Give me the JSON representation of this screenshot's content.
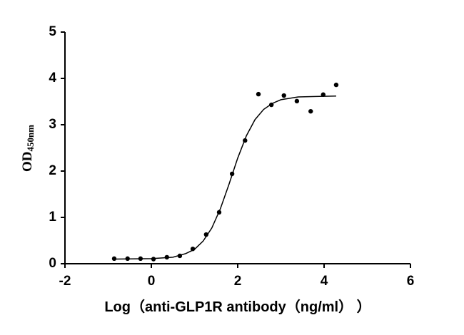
{
  "chart_data": {
    "type": "scatter",
    "x_label": "Log（anti-GLP1R antibody（ng/ml） ）",
    "y_label": "OD",
    "y_label_sub": "450nm",
    "x": [
      -0.86,
      -0.55,
      -0.25,
      0.05,
      0.36,
      0.66,
      0.96,
      1.27,
      1.57,
      1.87,
      2.17,
      2.48,
      2.78,
      3.07,
      3.37,
      3.69,
      3.98,
      4.28
    ],
    "values": [
      0.11,
      0.11,
      0.11,
      0.1,
      0.14,
      0.17,
      0.32,
      0.63,
      1.11,
      1.94,
      2.66,
      3.66,
      3.43,
      3.63,
      3.51,
      3.29,
      3.65,
      3.86
    ],
    "color": "#000000",
    "curve": {
      "x": [
        -0.86,
        0,
        0.5,
        0.8,
        1.0,
        1.2,
        1.4,
        1.6,
        1.8,
        2.0,
        2.2,
        2.4,
        2.6,
        2.8,
        3.0,
        3.4,
        3.8,
        4.28
      ],
      "y": [
        0.1,
        0.11,
        0.14,
        0.22,
        0.31,
        0.49,
        0.77,
        1.19,
        1.72,
        2.28,
        2.76,
        3.11,
        3.33,
        3.46,
        3.54,
        3.6,
        3.61,
        3.62
      ]
    },
    "xlim": [
      -2,
      6
    ],
    "xticks": [
      -2,
      0,
      2,
      4,
      6
    ],
    "ylim": [
      0,
      5
    ],
    "yticks": [
      0,
      1,
      2,
      3,
      4,
      5
    ]
  }
}
